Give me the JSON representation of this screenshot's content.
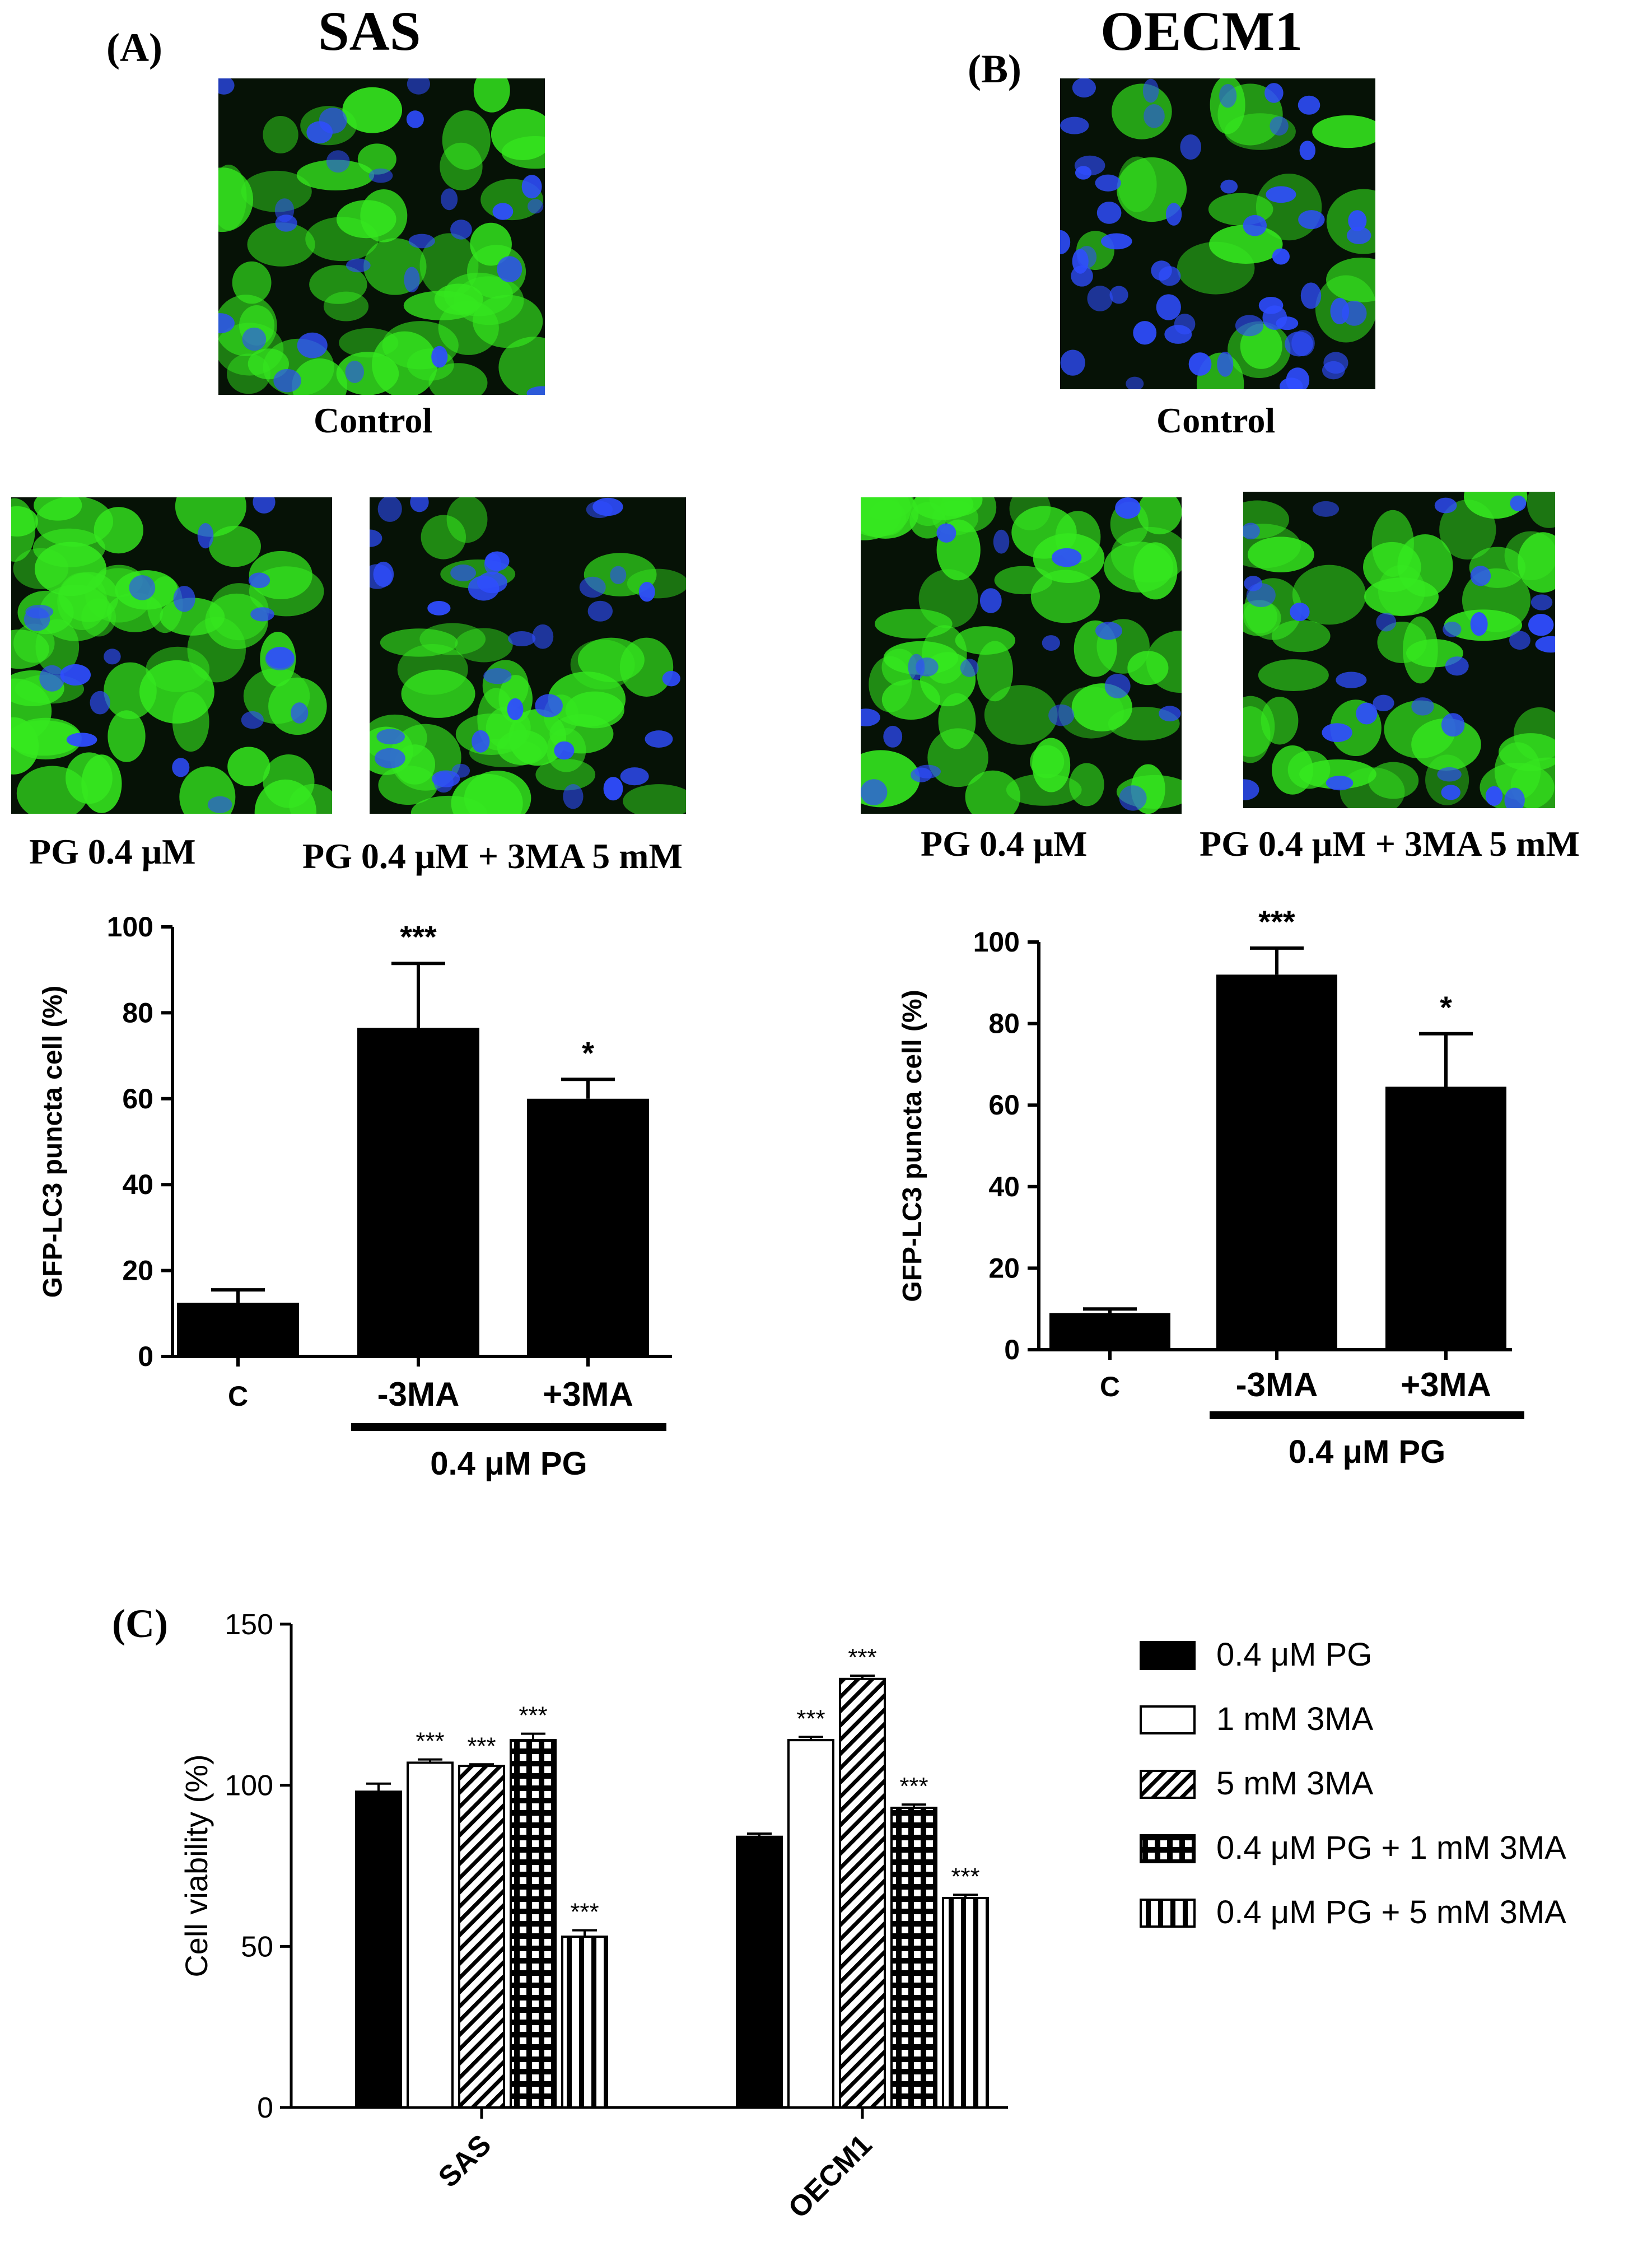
{
  "panels": {
    "A": {
      "letter": "(A)",
      "cell_line": "SAS",
      "images": [
        {
          "caption": "Control",
          "green": 0.75,
          "blue": 0.25
        },
        {
          "caption": "PG 0.4 μM",
          "green": 0.85,
          "blue": 0.15
        },
        {
          "caption": "PG 0.4 μM + 3MA 5 mM",
          "green": 0.6,
          "blue": 0.4
        }
      ]
    },
    "B": {
      "letter": "(B)",
      "cell_line": "OECM1",
      "images": [
        {
          "caption": "Control",
          "green": 0.3,
          "blue": 0.7
        },
        {
          "caption": "PG 0.4 μM",
          "green": 0.85,
          "blue": 0.15
        },
        {
          "caption": "PG 0.4 μM + 3MA 5 mM",
          "green": 0.7,
          "blue": 0.3
        }
      ]
    },
    "C": {
      "letter": "(C)"
    }
  },
  "colors": {
    "bar": "#000000",
    "micro_background": "#061206",
    "micro_green": "#35e81f",
    "micro_blue": "#2f4dff"
  },
  "chart_data": [
    {
      "type": "bar",
      "panel": "A",
      "categories": [
        "C",
        "-3MA",
        "+3MA"
      ],
      "values": [
        12.5,
        76.5,
        60
      ],
      "errors": [
        3,
        15,
        4.5
      ],
      "significance": [
        "",
        "***",
        "*"
      ],
      "ylabel": "GFP-LC3 puncta cell  (%)",
      "ylim": [
        0,
        100
      ],
      "yticks": [
        0,
        20,
        40,
        60,
        80,
        100
      ],
      "group_label": "0.4 μM PG",
      "group_categories": [
        "-3MA",
        "+3MA"
      ]
    },
    {
      "type": "bar",
      "panel": "B",
      "categories": [
        "C",
        "-3MA",
        "+3MA"
      ],
      "values": [
        9,
        92,
        64.5
      ],
      "errors": [
        1,
        6.5,
        13
      ],
      "significance": [
        "",
        "***",
        "*"
      ],
      "ylabel": "GFP-LC3 puncta cell  (%)",
      "ylim": [
        0,
        100
      ],
      "yticks": [
        0,
        20,
        40,
        60,
        80,
        100
      ],
      "group_label": "0.4 μM PG",
      "group_categories": [
        "-3MA",
        "+3MA"
      ]
    },
    {
      "type": "bar",
      "panel": "C",
      "categories": [
        "SAS",
        "OECM1"
      ],
      "ylabel": "Cell viability (%)",
      "ylim": [
        0,
        150
      ],
      "yticks": [
        0,
        50,
        100,
        150
      ],
      "legend_position": "right",
      "series": [
        {
          "name": "0.4 μM PG",
          "pattern": "solid",
          "values": [
            98,
            84
          ],
          "errors": [
            2.5,
            1
          ],
          "significance": [
            "",
            ""
          ]
        },
        {
          "name": "1 mM 3MA",
          "pattern": "open",
          "values": [
            107,
            114
          ],
          "errors": [
            1,
            1
          ],
          "significance": [
            "***",
            "***"
          ]
        },
        {
          "name": "5 mM 3MA",
          "pattern": "diagonal",
          "values": [
            106,
            133
          ],
          "errors": [
            0.5,
            1
          ],
          "significance": [
            "***",
            "***"
          ]
        },
        {
          "name": "0.4 μM PG + 1 mM 3MA",
          "pattern": "grid",
          "values": [
            114,
            93
          ],
          "errors": [
            2,
            1
          ],
          "significance": [
            "***",
            "***"
          ]
        },
        {
          "name": "0.4 μM PG + 5 mM 3MA",
          "pattern": "vertical",
          "values": [
            53,
            65
          ],
          "errors": [
            2,
            1
          ],
          "significance": [
            "***",
            "***"
          ]
        }
      ]
    }
  ]
}
